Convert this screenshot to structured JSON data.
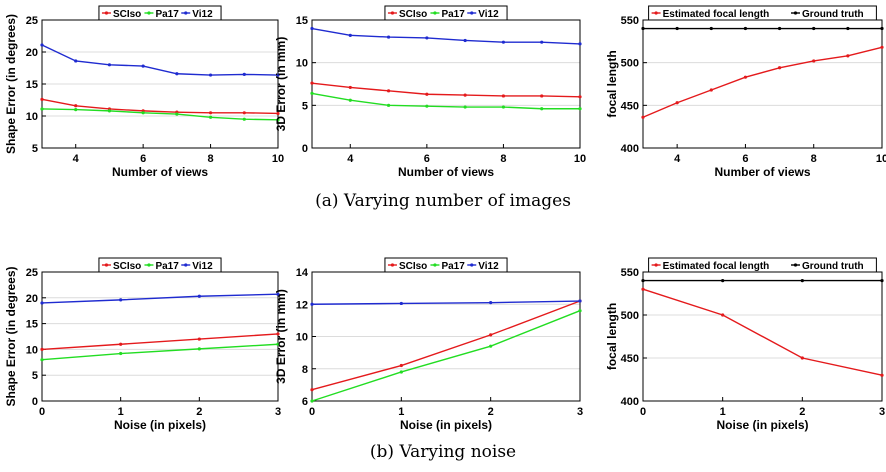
{
  "captions": {
    "a": "(a) Varying number of images",
    "b": "(b) Varying noise"
  },
  "colors": {
    "SCIso": "#e41a1c",
    "Pa17": "#22dd22",
    "Vi12": "#1f2bd0",
    "estimated": "#e41a1c",
    "ground_truth": "#000000"
  },
  "chart_data": [
    {
      "type": "line",
      "xlabel": "Number of views",
      "ylabel": "Shape Error (in degrees)",
      "xlim": [
        3,
        10
      ],
      "ylim": [
        5,
        25
      ],
      "xticks": [
        4,
        6,
        8,
        10
      ],
      "yticks": [
        5,
        10,
        15,
        20,
        25
      ],
      "grid": "horizontal",
      "legend_position": "top",
      "x": [
        3,
        4,
        5,
        6,
        7,
        8,
        9,
        10
      ],
      "series": [
        {
          "name": "SCIso",
          "color": "#e41a1c",
          "values": [
            12.6,
            11.6,
            11.1,
            10.8,
            10.6,
            10.5,
            10.5,
            10.4
          ]
        },
        {
          "name": "Pa17",
          "color": "#22dd22",
          "values": [
            11.1,
            11.0,
            10.8,
            10.5,
            10.3,
            9.8,
            9.5,
            9.4
          ]
        },
        {
          "name": "Vi12",
          "color": "#1f2bd0",
          "values": [
            21.1,
            18.6,
            18.0,
            17.8,
            16.6,
            16.4,
            16.5,
            16.4
          ]
        }
      ]
    },
    {
      "type": "line",
      "xlabel": "Number of views",
      "ylabel": "3D Error (in mm)",
      "xlim": [
        3,
        10
      ],
      "ylim": [
        0,
        15
      ],
      "xticks": [
        4,
        6,
        8,
        10
      ],
      "yticks": [
        0,
        5,
        10,
        15
      ],
      "grid": "horizontal",
      "legend_position": "top",
      "x": [
        3,
        4,
        5,
        6,
        7,
        8,
        9,
        10
      ],
      "series": [
        {
          "name": "SCIso",
          "color": "#e41a1c",
          "values": [
            7.6,
            7.1,
            6.7,
            6.3,
            6.2,
            6.1,
            6.1,
            6.0
          ]
        },
        {
          "name": "Pa17",
          "color": "#22dd22",
          "values": [
            6.4,
            5.6,
            5.0,
            4.9,
            4.8,
            4.8,
            4.6,
            4.6
          ]
        },
        {
          "name": "Vi12",
          "color": "#1f2bd0",
          "values": [
            14.0,
            13.2,
            13.0,
            12.9,
            12.6,
            12.4,
            12.4,
            12.2
          ]
        }
      ]
    },
    {
      "type": "line",
      "xlabel": "Number of views",
      "ylabel": "focal length",
      "xlim": [
        3,
        10
      ],
      "ylim": [
        400,
        550
      ],
      "xticks": [
        4,
        6,
        8,
        10
      ],
      "yticks": [
        400,
        450,
        500,
        550
      ],
      "grid": "horizontal",
      "legend_position": "top",
      "x": [
        3,
        4,
        5,
        6,
        7,
        8,
        9,
        10
      ],
      "series": [
        {
          "name": "Estimated focal length",
          "color": "#e41a1c",
          "values": [
            436,
            453,
            468,
            483,
            494,
            502,
            508,
            518
          ]
        },
        {
          "name": "Ground truth",
          "color": "#000000",
          "values": [
            540,
            540,
            540,
            540,
            540,
            540,
            540,
            540
          ]
        }
      ]
    },
    {
      "type": "line",
      "xlabel": "Noise (in pixels)",
      "ylabel": "Shape Error (in degrees)",
      "xlim": [
        0,
        3
      ],
      "ylim": [
        0,
        25
      ],
      "xticks": [
        0,
        1,
        2,
        3
      ],
      "yticks": [
        0,
        5,
        10,
        15,
        20,
        25
      ],
      "grid": "horizontal",
      "legend_position": "top",
      "x": [
        0,
        1,
        2,
        3
      ],
      "series": [
        {
          "name": "SCIso",
          "color": "#e41a1c",
          "values": [
            10.0,
            11.0,
            12.0,
            13.0
          ]
        },
        {
          "name": "Pa17",
          "color": "#22dd22",
          "values": [
            8.0,
            9.2,
            10.1,
            11.0
          ]
        },
        {
          "name": "Vi12",
          "color": "#1f2bd0",
          "values": [
            19.0,
            19.6,
            20.3,
            20.7
          ]
        }
      ]
    },
    {
      "type": "line",
      "xlabel": "Noise (in pixels)",
      "ylabel": "3D Error (in mm)",
      "xlim": [
        0,
        3
      ],
      "ylim": [
        6,
        14
      ],
      "xticks": [
        0,
        1,
        2,
        3
      ],
      "yticks": [
        6,
        8,
        10,
        12,
        14
      ],
      "grid": "horizontal",
      "legend_position": "top",
      "x": [
        0,
        1,
        2,
        3
      ],
      "series": [
        {
          "name": "SCIso",
          "color": "#e41a1c",
          "values": [
            6.7,
            8.2,
            10.1,
            12.2
          ]
        },
        {
          "name": "Pa17",
          "color": "#22dd22",
          "values": [
            6.0,
            7.8,
            9.4,
            11.6
          ]
        },
        {
          "name": "Vi12",
          "color": "#1f2bd0",
          "values": [
            12.0,
            12.05,
            12.1,
            12.2
          ]
        }
      ]
    },
    {
      "type": "line",
      "xlabel": "Noise (in pixels)",
      "ylabel": "focal length",
      "xlim": [
        0,
        3
      ],
      "ylim": [
        400,
        550
      ],
      "xticks": [
        0,
        1,
        2,
        3
      ],
      "yticks": [
        400,
        450,
        500,
        550
      ],
      "grid": "horizontal",
      "legend_position": "top",
      "x": [
        0,
        1,
        2,
        3
      ],
      "series": [
        {
          "name": "Estimated focal length",
          "color": "#e41a1c",
          "values": [
            530,
            500,
            450,
            430
          ]
        },
        {
          "name": "Ground truth",
          "color": "#000000",
          "values": [
            540,
            540,
            540,
            540
          ]
        }
      ]
    }
  ]
}
